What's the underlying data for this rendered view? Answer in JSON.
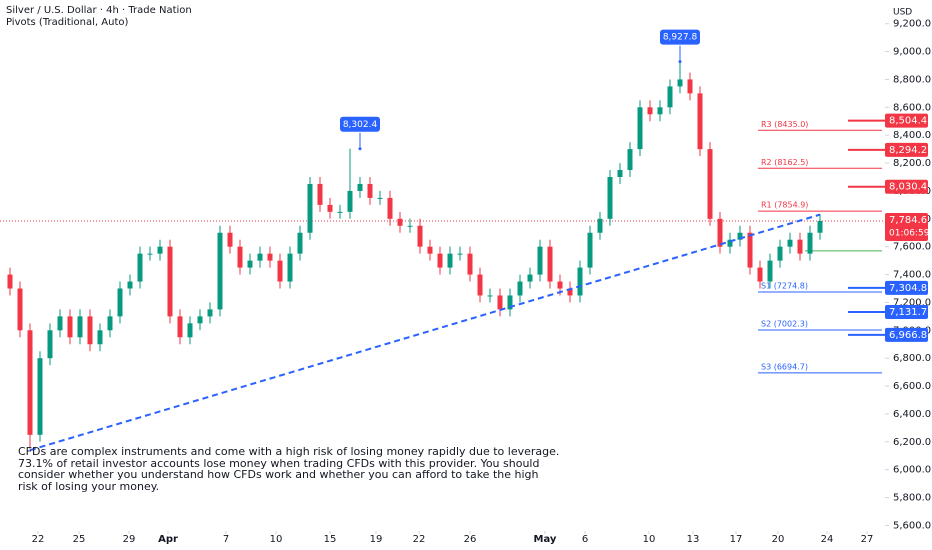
{
  "chart_data": {
    "type": "candlestick",
    "title": "Silver / U.S. Dollar · 4h · Trade Nation",
    "subtitle": "Pivots (Traditional, Auto)",
    "currency": "USD",
    "up_color": "#089981",
    "down_color": "#f23645",
    "xlim": [
      -2,
      86.5
    ],
    "ylim": [
      5560,
      9370
    ],
    "xticks": [
      {
        "value": 1.8,
        "label": "22"
      },
      {
        "value": 5.9,
        "label": "25"
      },
      {
        "value": 10.9,
        "label": "29"
      },
      {
        "value": 14.8,
        "label": "Apr"
      },
      {
        "value": 20.6,
        "label": "7"
      },
      {
        "value": 25.6,
        "label": "10"
      },
      {
        "value": 31.0,
        "label": "15"
      },
      {
        "value": 35.6,
        "label": "19"
      },
      {
        "value": 39.9,
        "label": "22"
      },
      {
        "value": 45.0,
        "label": "26"
      },
      {
        "value": 52.5,
        "label": "May"
      },
      {
        "value": 56.5,
        "label": "6"
      },
      {
        "value": 62.9,
        "label": "10"
      },
      {
        "value": 67.3,
        "label": "13"
      },
      {
        "value": 71.6,
        "label": "17"
      },
      {
        "value": 75.8,
        "label": "20"
      },
      {
        "value": 80.7,
        "label": "24"
      },
      {
        "value": 84.7,
        "label": "27"
      }
    ],
    "yticks": [
      {
        "value": 5600,
        "label": "5,600.0"
      },
      {
        "value": 5800,
        "label": "5,800.0"
      },
      {
        "value": 6000,
        "label": "6,000.0"
      },
      {
        "value": 6200,
        "label": "6,200.0"
      },
      {
        "value": 6400,
        "label": "6,400.0"
      },
      {
        "value": 6600,
        "label": "6,600.0"
      },
      {
        "value": 6800,
        "label": "6,800.0"
      },
      {
        "value": 7000,
        "label": "7,000.0"
      },
      {
        "value": 7200,
        "label": "7,200.0"
      },
      {
        "value": 7400,
        "label": "7,400.0"
      },
      {
        "value": 7600,
        "label": "7,600.0"
      },
      {
        "value": 7800,
        "label": "7,800.0"
      },
      {
        "value": 8000,
        "label": "8,000.0"
      },
      {
        "value": 8200,
        "label": "8,200.0"
      },
      {
        "value": 8400,
        "label": "8,400.0"
      },
      {
        "value": 8600,
        "label": "8,600.0"
      },
      {
        "value": 8800,
        "label": "8,800.0"
      },
      {
        "value": 9000,
        "label": "9,000.0"
      },
      {
        "value": 9200,
        "label": "9,200.0"
      }
    ],
    "x": [
      -1,
      0,
      1,
      2,
      3,
      4,
      5,
      6,
      7,
      8,
      9,
      10,
      11,
      12,
      13,
      14,
      15,
      16,
      17,
      18,
      19,
      20,
      21,
      22,
      23,
      24,
      25,
      26,
      27,
      28,
      29,
      30,
      31,
      32,
      33,
      34,
      35,
      36,
      37,
      38,
      39,
      40,
      41,
      42,
      43,
      44,
      45,
      46,
      47,
      48,
      49,
      50,
      51,
      52,
      53,
      54,
      55,
      56,
      57,
      58,
      59,
      60,
      61,
      62,
      63,
      64,
      65,
      66,
      67,
      68,
      69,
      70,
      71,
      72,
      73,
      74,
      75,
      76,
      77,
      78,
      79,
      80
    ],
    "open": [
      7400,
      7300,
      7000,
      6250,
      6800,
      7000,
      7100,
      6950,
      7100,
      6900,
      7000,
      7100,
      7300,
      7350,
      7550,
      7550,
      7600,
      7100,
      6950,
      7050,
      7100,
      7150,
      7700,
      7600,
      7450,
      7500,
      7550,
      7500,
      7350,
      7550,
      7700,
      8050,
      7900,
      7850,
      7850,
      8000,
      8050,
      7950,
      7950,
      7800,
      7750,
      7750,
      7600,
      7550,
      7450,
      7550,
      7550,
      7400,
      7250,
      7250,
      7150,
      7250,
      7350,
      7400,
      7600,
      7350,
      7300,
      7250,
      7450,
      7700,
      7800,
      8100,
      8150,
      8300,
      8600,
      8550,
      8600,
      8750,
      8800,
      8700,
      8300,
      7800,
      7600,
      7650,
      7700,
      7450,
      7350,
      7500,
      7600,
      7650,
      7550,
      7700
    ],
    "high": [
      7450,
      7350,
      7050,
      6850,
      7050,
      7150,
      7150,
      7150,
      7150,
      7050,
      7150,
      7350,
      7400,
      7600,
      7600,
      7650,
      7650,
      7150,
      7100,
      7150,
      7200,
      7750,
      7750,
      7650,
      7550,
      7600,
      7600,
      7550,
      7600,
      7750,
      8100,
      8100,
      7950,
      7900,
      8302.4,
      8100,
      8100,
      8000,
      8000,
      7850,
      7800,
      7800,
      7650,
      7600,
      7600,
      7600,
      7600,
      7450,
      7300,
      7300,
      7300,
      7400,
      7450,
      7650,
      7650,
      7400,
      7350,
      7500,
      7750,
      7850,
      8150,
      8200,
      8350,
      8650,
      8650,
      8650,
      8800,
      8927.8,
      8850,
      8750,
      8350,
      7850,
      7700,
      7750,
      7750,
      7500,
      7550,
      7650,
      7700,
      7700,
      7750,
      7834.6
    ],
    "low": [
      7250,
      6950,
      6150,
      6200,
      6750,
      6950,
      6900,
      6900,
      6850,
      6850,
      6950,
      7050,
      7250,
      7300,
      7500,
      7500,
      7050,
      6900,
      6900,
      7000,
      7050,
      7100,
      7550,
      7400,
      7400,
      7450,
      7450,
      7300,
      7300,
      7500,
      7650,
      7850,
      7800,
      7800,
      7800,
      7950,
      7900,
      7900,
      7750,
      7700,
      7700,
      7550,
      7500,
      7400,
      7400,
      7500,
      7350,
      7200,
      7200,
      7100,
      7100,
      7200,
      7300,
      7350,
      7300,
      7250,
      7200,
      7200,
      7400,
      7650,
      7750,
      8050,
      8100,
      8250,
      8500,
      8500,
      8550,
      8700,
      8650,
      8250,
      7750,
      7550,
      7550,
      7600,
      7400,
      7300,
      7300,
      7450,
      7550,
      7500,
      7500,
      7650
    ],
    "close": [
      7300,
      7000,
      6250,
      6800,
      7000,
      7100,
      6950,
      7100,
      6900,
      7000,
      7100,
      7300,
      7350,
      7550,
      7550,
      7600,
      7100,
      6950,
      7050,
      7100,
      7150,
      7700,
      7600,
      7450,
      7500,
      7550,
      7500,
      7350,
      7550,
      7700,
      8050,
      7900,
      7850,
      7850,
      8000,
      8050,
      7950,
      7950,
      7800,
      7750,
      7750,
      7600,
      7550,
      7450,
      7550,
      7550,
      7400,
      7250,
      7250,
      7150,
      7250,
      7350,
      7400,
      7600,
      7350,
      7300,
      7250,
      7450,
      7700,
      7800,
      8100,
      8150,
      8300,
      8600,
      8550,
      8600,
      8750,
      8800,
      8700,
      8300,
      7800,
      7600,
      7650,
      7700,
      7450,
      7350,
      7500,
      7600,
      7650,
      7550,
      7700,
      7784.6
    ],
    "trendline": {
      "color": "#2962ff",
      "x": [
        1,
        80
      ],
      "y": [
        6140,
        7830
      ]
    },
    "annotations": [
      {
        "x": 34,
        "value": 8302.4,
        "label": "8,302.4",
        "color": "#2962ff"
      },
      {
        "x": 66,
        "value": 8927.8,
        "label": "8,927.8",
        "color": "#2962ff"
      }
    ],
    "pivots": [
      {
        "label": "R3 (8435.0)",
        "value": 8435.0,
        "color": "#f23645"
      },
      {
        "label": "R2 (8162.5)",
        "value": 8162.5,
        "color": "#f23645"
      },
      {
        "label": "R1 (7854.9)",
        "value": 7854.9,
        "color": "#f23645"
      },
      {
        "label": "S1 (7274.8)",
        "value": 7274.8,
        "color": "#2962ff"
      },
      {
        "label": "S2 (7002.3)",
        "value": 7002.3,
        "color": "#2962ff"
      },
      {
        "label": "S3 (6694.7)",
        "value": 6694.7,
        "color": "#2962ff"
      }
    ],
    "pivot_point": {
      "value": 7570,
      "color": "#4caf50"
    },
    "levels": [
      {
        "value": 8504.4,
        "label": "8,504.4",
        "color": "#f23645"
      },
      {
        "value": 8294.2,
        "label": "8,294.2",
        "color": "#f23645"
      },
      {
        "value": 8030.4,
        "label": "8,030.4",
        "color": "#f23645"
      },
      {
        "value": 7304.8,
        "label": "7,304.8",
        "color": "#2962ff"
      },
      {
        "value": 7131.7,
        "label": "7,131.7",
        "color": "#2962ff"
      },
      {
        "value": 6966.8,
        "label": "6,966.8",
        "color": "#2962ff"
      }
    ],
    "last_price": {
      "value": 7784.6,
      "label": "7,784.6",
      "countdown": "01:06:59",
      "color": "#f23645"
    },
    "disclaimer": [
      "CFDs are complex instruments and come with a high risk of losing money rapidly due to leverage.",
      "73.1% of retail investor accounts lose money when trading CFDs with this provider. You should",
      "consider whether you understand how CFDs work and whether you can afford to take the high",
      "risk of losing your money."
    ]
  }
}
